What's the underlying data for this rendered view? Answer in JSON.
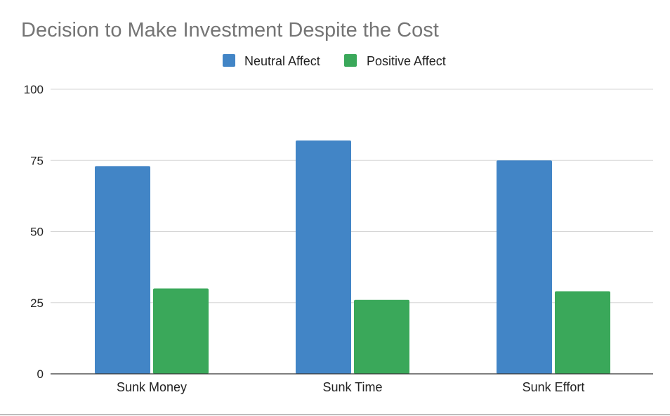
{
  "chart_data": {
    "type": "bar",
    "title": "Decision to Make Investment Despite the Cost",
    "xlabel": "",
    "ylabel": "",
    "categories": [
      "Sunk Money",
      "Sunk Time",
      "Sunk Effort"
    ],
    "series": [
      {
        "name": "Neutral Affect",
        "values": [
          73,
          82,
          75
        ],
        "color": "#4285c6"
      },
      {
        "name": "Positive Affect",
        "values": [
          30,
          26,
          29
        ],
        "color": "#3aa85a"
      }
    ],
    "ylim": [
      0,
      100
    ],
    "yticks": [
      "0",
      "25",
      "50",
      "75",
      "100"
    ],
    "ytick_values": [
      0,
      25,
      50,
      75,
      100
    ],
    "grid": true,
    "legend_position": "top-center"
  }
}
